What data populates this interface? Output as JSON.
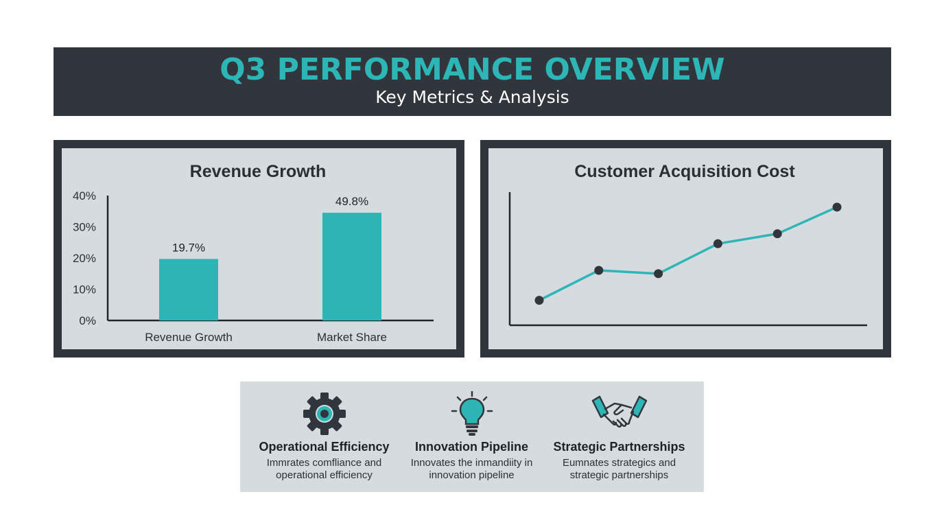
{
  "header": {
    "title": "Q3 PERFORMANCE OVERVIEW",
    "subtitle": "Key Metrics & Analysis"
  },
  "colors": {
    "accent": "#2eb5b5",
    "dark": "#31363d",
    "panel_bg": "#d5dbdf",
    "point": "#31363d"
  },
  "chart_data": [
    {
      "type": "bar",
      "title": "Revenue Growth",
      "categories": [
        "Revenue Growth",
        "Market Share"
      ],
      "values": [
        19.7,
        49.8
      ],
      "value_labels": [
        "19.7%",
        "49.8%"
      ],
      "y_ticks": [
        "0%",
        "10%",
        "20%",
        "30%",
        "40%"
      ],
      "ylim": [
        0,
        40
      ],
      "grid": false
    },
    {
      "type": "line",
      "title": "Customer Acquisition Cost",
      "values": [
        7.5,
        16.5,
        15.5,
        24.5,
        27.5,
        35.5
      ],
      "ylim": [
        0,
        40
      ],
      "grid": false
    }
  ],
  "features": [
    {
      "icon": "gear-icon",
      "title": "Operational Efficiency",
      "desc_line1": "Immrates comfliance and",
      "desc_line2": "operational efficiency"
    },
    {
      "icon": "lightbulb-icon",
      "title": "Innovation Pipeline",
      "desc_line1": "Innovates the inmandiity in",
      "desc_line2": "innovation pipeline"
    },
    {
      "icon": "handshake-icon",
      "title": "Strategic Partnerships",
      "desc_line1": "Eumnates strategics and",
      "desc_line2": "strategic partnerships"
    }
  ]
}
